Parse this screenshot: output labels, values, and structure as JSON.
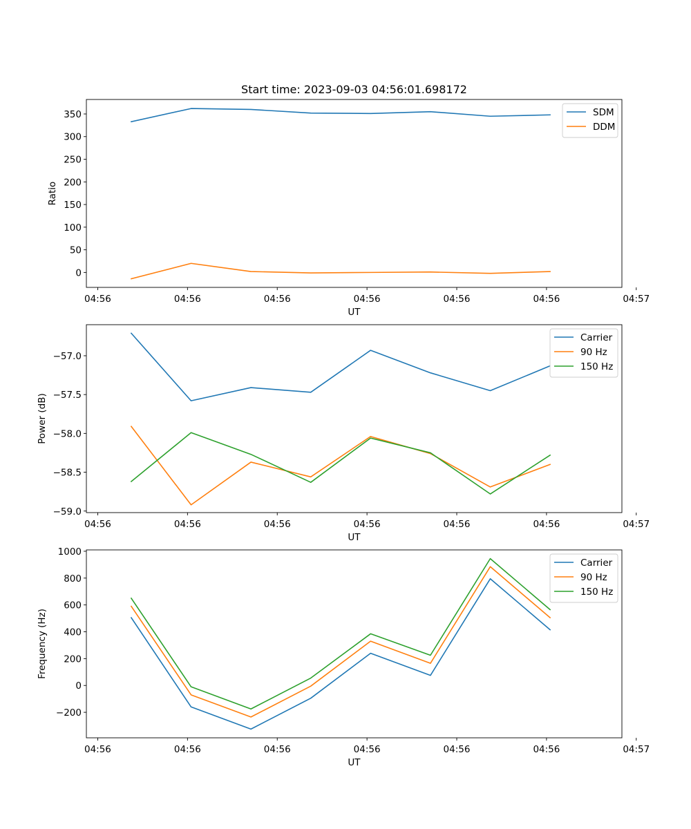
{
  "colors": {
    "blue": "#1f77b4",
    "orange": "#ff7f0e",
    "green": "#2ca02c"
  },
  "chart_data": [
    {
      "type": "line",
      "title": "Start time: 2023-09-03 04:56:01.698172",
      "xlabel": "UT",
      "ylabel": "Ratio",
      "x": [
        1,
        2,
        3,
        4,
        5,
        6,
        7,
        8
      ],
      "xlim": [
        0.25,
        9.2
      ],
      "xticks": [
        0.44,
        1.94,
        3.44,
        4.94,
        6.44,
        7.94,
        9.44
      ],
      "xtick_labels": [
        "04:56",
        "04:56",
        "04:56",
        "04:56",
        "04:56",
        "04:56",
        "04:57"
      ],
      "ylim": [
        -33,
        382
      ],
      "yticks": [
        0,
        50,
        100,
        150,
        200,
        250,
        300,
        350
      ],
      "ytick_labels": [
        "0",
        "50",
        "100",
        "150",
        "200",
        "250",
        "300",
        "350"
      ],
      "legend_position": "top-right",
      "series": [
        {
          "name": "SDM",
          "color": "blue",
          "values": [
            333,
            362,
            360,
            352,
            351,
            355,
            345,
            348
          ]
        },
        {
          "name": "DDM",
          "color": "orange",
          "values": [
            -14,
            20,
            2,
            -1,
            0,
            1,
            -2,
            2
          ]
        }
      ]
    },
    {
      "type": "line",
      "title": "",
      "xlabel": "UT",
      "ylabel": "Power (dB)",
      "x": [
        1,
        2,
        3,
        4,
        5,
        6,
        7,
        8
      ],
      "xlim": [
        0.25,
        9.2
      ],
      "xticks": [
        0.44,
        1.94,
        3.44,
        4.94,
        6.44,
        7.94,
        9.44
      ],
      "xtick_labels": [
        "04:56",
        "04:56",
        "04:56",
        "04:56",
        "04:56",
        "04:56",
        "04:57"
      ],
      "ylim": [
        -59.02,
        -56.6
      ],
      "yticks": [
        -59.0,
        -58.5,
        -58.0,
        -57.5,
        -57.0
      ],
      "ytick_labels": [
        "−59.0",
        "−58.5",
        "−58.0",
        "−57.5",
        "−57.0"
      ],
      "legend_position": "top-right",
      "series": [
        {
          "name": "Carrier",
          "color": "blue",
          "values": [
            -56.71,
            -57.58,
            -57.41,
            -57.47,
            -56.93,
            -57.22,
            -57.45,
            -57.13
          ]
        },
        {
          "name": "90 Hz",
          "color": "orange",
          "values": [
            -57.91,
            -58.92,
            -58.37,
            -58.56,
            -58.04,
            -58.26,
            -58.69,
            -58.4
          ]
        },
        {
          "name": "150 Hz",
          "color": "green",
          "values": [
            -58.62,
            -57.99,
            -58.27,
            -58.63,
            -58.06,
            -58.25,
            -58.78,
            -58.28
          ]
        }
      ]
    },
    {
      "type": "line",
      "title": "",
      "xlabel": "UT",
      "ylabel": "Frequency (Hz)",
      "x": [
        1,
        2,
        3,
        4,
        5,
        6,
        7,
        8
      ],
      "xlim": [
        0.25,
        9.2
      ],
      "xticks": [
        0.44,
        1.94,
        3.44,
        4.94,
        6.44,
        7.94,
        9.44
      ],
      "xtick_labels": [
        "04:56",
        "04:56",
        "04:56",
        "04:56",
        "04:56",
        "04:56",
        "04:57"
      ],
      "ylim": [
        -390,
        1010
      ],
      "yticks": [
        -200,
        0,
        200,
        400,
        600,
        800,
        1000
      ],
      "ytick_labels": [
        "−200",
        "0",
        "200",
        "400",
        "600",
        "800",
        "1000"
      ],
      "legend_position": "top-right",
      "series": [
        {
          "name": "Carrier",
          "color": "blue",
          "values": [
            505,
            -160,
            -325,
            -95,
            240,
            75,
            795,
            415
          ]
        },
        {
          "name": "90 Hz",
          "color": "orange",
          "values": [
            590,
            -70,
            -235,
            -5,
            330,
            165,
            885,
            505
          ]
        },
        {
          "name": "150 Hz",
          "color": "green",
          "values": [
            650,
            -10,
            -175,
            55,
            385,
            225,
            945,
            565
          ]
        }
      ]
    }
  ]
}
